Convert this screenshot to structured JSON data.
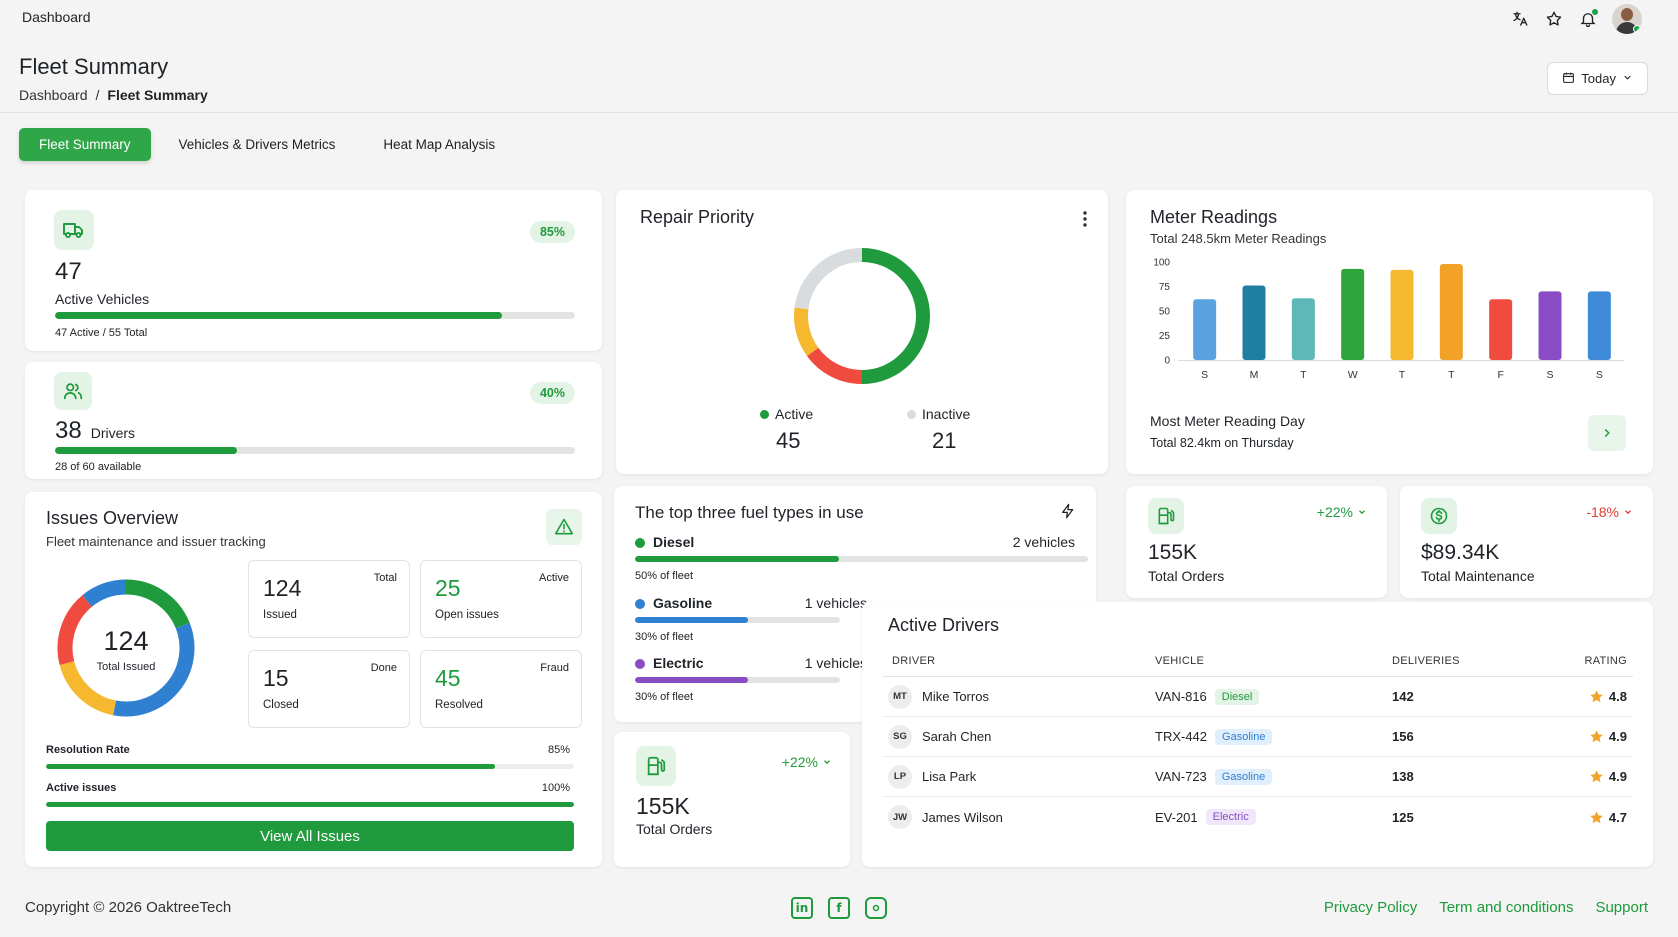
{
  "topbar": {
    "breadcrumb": "Dashboard"
  },
  "header": {
    "title": "Fleet Summary",
    "breadcrumb": [
      "Dashboard",
      "/",
      "Fleet Summary"
    ],
    "date_filter": "Today"
  },
  "tabs": [
    {
      "label": "Fleet Summary",
      "active": true
    },
    {
      "label": "Vehicles & Drivers Metrics",
      "active": false
    },
    {
      "label": "Heat Map Analysis",
      "active": false
    }
  ],
  "active_vehicles": {
    "value": "47",
    "label": "Active Vehicles",
    "percent_label": "85%",
    "progress": 0.86,
    "footnote": "47 Active / 55 Total",
    "icon": "truck-icon"
  },
  "drivers": {
    "value": "38",
    "label": "Drivers",
    "percent_label": "40%",
    "progress": 0.35,
    "footnote": "28 of 60 available",
    "icon": "users-icon"
  },
  "repair_priority": {
    "title": "Repair Priority",
    "legend": [
      {
        "label": "Active",
        "value": "45",
        "color": "#1f9a3c"
      },
      {
        "label": "Inactive",
        "value": "21",
        "color": "#d9dcdf"
      }
    ],
    "donut": [
      {
        "value": 50,
        "color": "#1f9a3c"
      },
      {
        "value": 15,
        "color": "#ef4b3f"
      },
      {
        "value": 12,
        "color": "#f5b82e"
      },
      {
        "value": 23,
        "color": "#d9dcdf"
      }
    ]
  },
  "meter_readings": {
    "title": "Meter Readings",
    "subtitle": "Total 248.5km Meter Readings",
    "chart_data": {
      "type": "bar",
      "categories": [
        "S",
        "M",
        "T",
        "W",
        "T",
        "T",
        "F",
        "S",
        "S"
      ],
      "values": [
        62,
        76,
        63,
        93,
        92,
        98,
        62,
        70,
        70
      ],
      "colors": [
        "#5aa3e0",
        "#1f7fa3",
        "#5fb8b8",
        "#2fa33c",
        "#f5b82e",
        "#f2a227",
        "#ef4b3f",
        "#8a4cc5",
        "#3f8ad8"
      ],
      "yticks": [
        0,
        25,
        50,
        75,
        100
      ],
      "ylim": [
        0,
        100
      ]
    },
    "footer_title": "Most Meter Reading Day",
    "footer_sub": "Total 82.4km on Thursday"
  },
  "issues": {
    "title": "Issues Overview",
    "subtitle": "Fleet maintenance and issuer tracking",
    "center_value": "124",
    "center_label": "Total Issued",
    "donut": [
      {
        "value": 19,
        "color": "#1f9a3c"
      },
      {
        "value": 34,
        "color": "#2f80d0"
      },
      {
        "value": 18,
        "color": "#f5b82e"
      },
      {
        "value": 18,
        "color": "#ef4b3f"
      },
      {
        "value": 11,
        "color": "#2f80d0"
      }
    ],
    "stats": [
      {
        "num": "124",
        "label": "Issued",
        "tag": "Total",
        "color": "#1f2328"
      },
      {
        "num": "25",
        "label": "Open issues",
        "tag": "Active",
        "color": "#1f9a3c"
      },
      {
        "num": "15",
        "label": "Closed",
        "tag": "Done",
        "color": "#1f2328"
      },
      {
        "num": "45",
        "label": "Resolved",
        "tag": "Fraud",
        "color": "#1f9a3c"
      }
    ],
    "resolution": {
      "label": "Resolution Rate",
      "value": "85%",
      "progress": 0.85
    },
    "active": {
      "label": "Active issues",
      "value": "100%",
      "progress": 1.0
    },
    "button": "View All Issues"
  },
  "fuel": {
    "title": "The top three fuel types in use",
    "items": [
      {
        "name": "Diesel",
        "count": "2 vehicles",
        "share": "50% of fleet",
        "color": "#1f9a3c",
        "progress": 0.45
      },
      {
        "name": "Gasoline",
        "count": "1 vehicles",
        "share": "30% of fleet",
        "color": "#2f80d0",
        "progress": 0.55
      },
      {
        "name": "Electric",
        "count": "1 vehicles",
        "share": "30% of fleet",
        "color": "#8a4cc5",
        "progress": 0.55
      }
    ]
  },
  "orders_small": {
    "value": "155K",
    "label": "Total Orders",
    "change": "+22%",
    "change_color": "#1f9a3c"
  },
  "orders": {
    "value": "155K",
    "label": "Total Orders",
    "change": "+22%",
    "change_color": "#1f9a3c"
  },
  "maintenance": {
    "value": "$89.34K",
    "label": "Total Maintenance",
    "change": "-18%",
    "change_color": "#e03a2f"
  },
  "active_drivers": {
    "title": "Active Drivers",
    "columns": [
      "DRIVER",
      "VEHICLE",
      "DELIVERIES",
      "RATING"
    ],
    "rows": [
      {
        "initials": "MT",
        "name": "Mike Torros",
        "vehicle": "VAN-816",
        "fuel": "Diesel",
        "fuel_bg": "#e3f4e6",
        "fuel_color": "#1f9a3c",
        "deliveries": "142",
        "rating": "4.8"
      },
      {
        "initials": "SG",
        "name": "Sarah Chen",
        "vehicle": "TRX-442",
        "fuel": "Gasoline",
        "fuel_bg": "#e1eefb",
        "fuel_color": "#2f80d0",
        "deliveries": "156",
        "rating": "4.9"
      },
      {
        "initials": "LP",
        "name": "Lisa Park",
        "vehicle": "VAN-723",
        "fuel": "Gasoline",
        "fuel_bg": "#e1eefb",
        "fuel_color": "#2f80d0",
        "deliveries": "138",
        "rating": "4.9"
      },
      {
        "initials": "JW",
        "name": "James Wilson",
        "vehicle": "EV-201",
        "fuel": "Electric",
        "fuel_bg": "#f1e7fa",
        "fuel_color": "#8a4cc5",
        "deliveries": "125",
        "rating": "4.7"
      }
    ]
  },
  "footer": {
    "copyright": "Copyright © 2026 OaktreeTech",
    "social": [
      "linkedin-icon",
      "facebook-icon",
      "instagram-icon"
    ],
    "links": [
      "Privacy Policy",
      "Term and conditions",
      "Support"
    ]
  }
}
